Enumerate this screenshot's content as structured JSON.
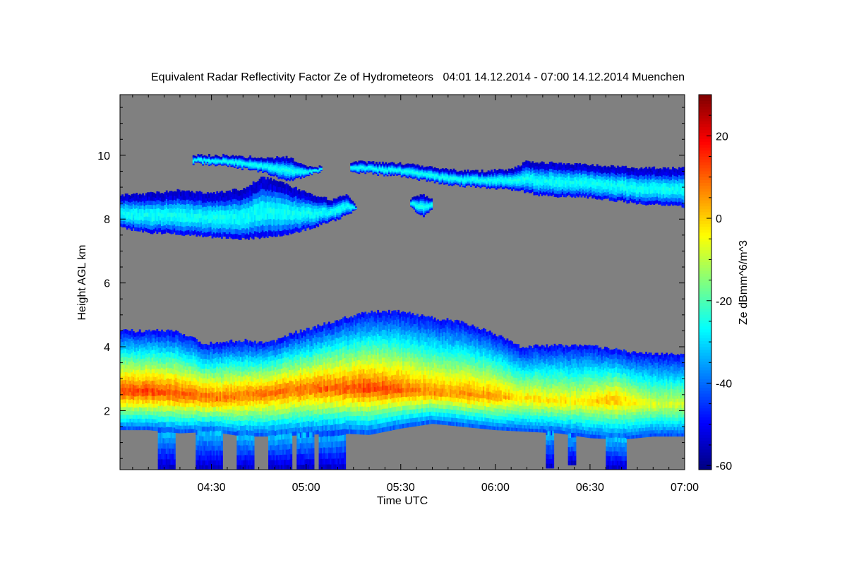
{
  "chart_data": {
    "type": "heatmap",
    "title": "Equivalent Radar Reflectivity Factor Ze of Hydrometeors   04:01 14.12.2014 - 07:00 14.12.2014 Muenchen",
    "xlabel": "Time UTC",
    "ylabel": "Height AGL km",
    "colorbar_label": "Ze dBmm^6/m^3",
    "x_units": "minutes after 04:00 UTC",
    "xlim": [
      1,
      180
    ],
    "ylim": [
      0.15,
      11.9
    ],
    "x_ticks": [
      {
        "value": 30,
        "label": "04:30"
      },
      {
        "value": 60,
        "label": "05:00"
      },
      {
        "value": 90,
        "label": "05:30"
      },
      {
        "value": 120,
        "label": "06:00"
      },
      {
        "value": 150,
        "label": "06:30"
      },
      {
        "value": 180,
        "label": "07:00"
      }
    ],
    "y_ticks": [
      {
        "value": 2,
        "label": "2"
      },
      {
        "value": 4,
        "label": "4"
      },
      {
        "value": 6,
        "label": "6"
      },
      {
        "value": 8,
        "label": "8"
      },
      {
        "value": 10,
        "label": "10"
      }
    ],
    "colorbar": {
      "range": [
        -61,
        30
      ],
      "ticks": [
        {
          "value": -60,
          "label": "-60"
        },
        {
          "value": -40,
          "label": "-40"
        },
        {
          "value": -20,
          "label": "-20"
        },
        {
          "value": 0,
          "label": "0"
        },
        {
          "value": 20,
          "label": "20"
        }
      ],
      "colormap": "jet"
    },
    "background_color": "#808080",
    "layers": [
      {
        "name": "lower cloud and precipitation",
        "top": [
          [
            1,
            4.5
          ],
          [
            18,
            4.5
          ],
          [
            28,
            4.1
          ],
          [
            40,
            4.2
          ],
          [
            48,
            4.1
          ],
          [
            55,
            4.4
          ],
          [
            62,
            4.6
          ],
          [
            72,
            4.9
          ],
          [
            80,
            5.1
          ],
          [
            90,
            5.1
          ],
          [
            100,
            4.9
          ],
          [
            108,
            4.8
          ],
          [
            115,
            4.6
          ],
          [
            122,
            4.3
          ],
          [
            128,
            4.0
          ],
          [
            140,
            4.05
          ],
          [
            152,
            4.0
          ],
          [
            165,
            3.8
          ],
          [
            180,
            3.75
          ]
        ],
        "base": [
          [
            1,
            1.4
          ],
          [
            10,
            1.4
          ],
          [
            20,
            1.3
          ],
          [
            30,
            1.35
          ],
          [
            40,
            1.2
          ],
          [
            50,
            1.2
          ],
          [
            60,
            1.25
          ],
          [
            70,
            1.3
          ],
          [
            80,
            1.25
          ],
          [
            90,
            1.45
          ],
          [
            100,
            1.6
          ],
          [
            110,
            1.5
          ],
          [
            120,
            1.4
          ],
          [
            130,
            1.35
          ],
          [
            140,
            1.3
          ],
          [
            150,
            1.15
          ],
          [
            160,
            1.1
          ],
          [
            170,
            1.2
          ],
          [
            180,
            1.2
          ]
        ],
        "core": [
          [
            1,
            2.6,
            14
          ],
          [
            10,
            2.6,
            14
          ],
          [
            22,
            2.5,
            12
          ],
          [
            32,
            2.4,
            10
          ],
          [
            42,
            2.5,
            9
          ],
          [
            52,
            2.6,
            10
          ],
          [
            62,
            2.7,
            10
          ],
          [
            72,
            2.7,
            12
          ],
          [
            80,
            2.7,
            14
          ],
          [
            88,
            2.65,
            12
          ],
          [
            96,
            2.6,
            8
          ],
          [
            105,
            2.55,
            6
          ],
          [
            112,
            2.5,
            7
          ],
          [
            120,
            2.45,
            5
          ],
          [
            128,
            2.4,
            0
          ],
          [
            138,
            2.3,
            -1
          ],
          [
            148,
            2.3,
            -2
          ],
          [
            158,
            2.35,
            3
          ],
          [
            168,
            2.2,
            -6
          ],
          [
            180,
            2.2,
            -8
          ]
        ],
        "fallstreaks": [
          {
            "x": [
              13,
              18
            ],
            "bottom": 0.15
          },
          {
            "x": [
              25,
              33
            ],
            "bottom": 0.15
          },
          {
            "x": [
              38,
              43
            ],
            "bottom": 0.15
          },
          {
            "x": [
              48,
              55
            ],
            "bottom": 0.15
          },
          {
            "x": [
              57,
              62
            ],
            "bottom": 0.15
          },
          {
            "x": [
              64,
              72
            ],
            "bottom": 0.15
          },
          {
            "x": [
              136,
              138
            ],
            "bottom": 0.2
          },
          {
            "x": [
              143,
              145
            ],
            "bottom": 0.3
          },
          {
            "x": [
              155,
              161
            ],
            "bottom": 0.15
          }
        ]
      },
      {
        "name": "mid-level cirrus",
        "top": [
          [
            1,
            8.75
          ],
          [
            10,
            8.8
          ],
          [
            20,
            8.9
          ],
          [
            30,
            8.8
          ],
          [
            40,
            8.95
          ],
          [
            46,
            9.3
          ],
          [
            52,
            9.2
          ],
          [
            58,
            8.9
          ],
          [
            68,
            8.6
          ],
          [
            73,
            8.8
          ],
          [
            76,
            8.4
          ]
        ],
        "base": [
          [
            1,
            7.75
          ],
          [
            10,
            7.6
          ],
          [
            18,
            7.55
          ],
          [
            24,
            7.5
          ],
          [
            30,
            7.45
          ],
          [
            40,
            7.4
          ],
          [
            48,
            7.45
          ],
          [
            55,
            7.55
          ],
          [
            62,
            7.75
          ],
          [
            70,
            8.0
          ],
          [
            76,
            8.3
          ]
        ]
      },
      {
        "name": "upper cirrus plume",
        "top": [
          [
            24,
            10.0
          ],
          [
            34,
            10.0
          ],
          [
            42,
            9.95
          ],
          [
            47,
            9.9
          ],
          [
            54,
            9.95
          ],
          [
            60,
            9.7
          ],
          [
            63,
            9.6
          ],
          [
            65,
            9.7
          ]
        ],
        "base": [
          [
            24,
            9.75
          ],
          [
            34,
            9.7
          ],
          [
            42,
            9.55
          ],
          [
            47,
            9.45
          ],
          [
            54,
            9.2
          ],
          [
            60,
            9.35
          ],
          [
            63,
            9.45
          ],
          [
            65,
            9.5
          ]
        ]
      },
      {
        "name": "isolated fragment",
        "top": [
          [
            93,
            8.65
          ],
          [
            97,
            8.75
          ],
          [
            100,
            8.6
          ]
        ],
        "base": [
          [
            93,
            8.4
          ],
          [
            97,
            8.1
          ],
          [
            100,
            8.35
          ]
        ]
      },
      {
        "name": "upper cirrus band",
        "top": [
          [
            74,
            9.8
          ],
          [
            90,
            9.75
          ],
          [
            105,
            9.55
          ],
          [
            115,
            9.5
          ],
          [
            125,
            9.55
          ],
          [
            130,
            9.8
          ],
          [
            150,
            9.7
          ],
          [
            165,
            9.6
          ],
          [
            180,
            9.6
          ]
        ],
        "base": [
          [
            74,
            9.5
          ],
          [
            90,
            9.35
          ],
          [
            105,
            9.1
          ],
          [
            115,
            9.0
          ],
          [
            125,
            8.95
          ],
          [
            135,
            8.75
          ],
          [
            150,
            8.7
          ],
          [
            165,
            8.5
          ],
          [
            180,
            8.4
          ]
        ]
      }
    ]
  }
}
